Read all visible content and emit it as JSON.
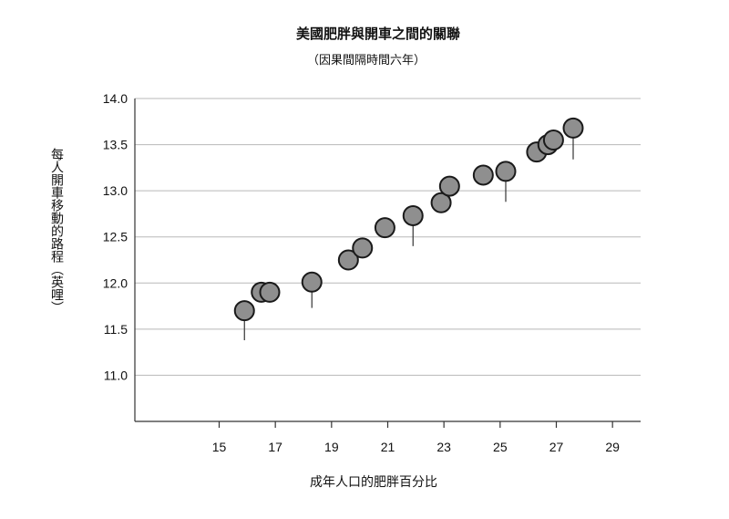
{
  "chart_data": {
    "type": "scatter",
    "title": "美國肥胖與開車之間的關聯",
    "subtitle": "（因果間隔時間六年）",
    "xlabel": "成年人口的肥胖百分比",
    "ylabel": "每人開車移動的路程（英哩）",
    "xlim": [
      12,
      30
    ],
    "ylim": [
      10.5,
      14.0
    ],
    "x_ticks": [
      15,
      17,
      19,
      21,
      23,
      25,
      27,
      29
    ],
    "x_tick_labels": [
      "15",
      "17",
      "19",
      "21",
      "23",
      "25",
      "27",
      "29"
    ],
    "y_ticks": [
      11.0,
      11.5,
      12.0,
      12.5,
      13.0,
      13.5,
      14.0
    ],
    "y_tick_labels": [
      "11.0",
      "11.5",
      "12.0",
      "12.5",
      "13.0",
      "13.5",
      "14.0"
    ],
    "grid": "horizontal",
    "points": [
      {
        "x": 15.9,
        "y": 11.7,
        "drop_to": 11.38
      },
      {
        "x": 16.5,
        "y": 11.9
      },
      {
        "x": 16.8,
        "y": 11.9
      },
      {
        "x": 18.3,
        "y": 12.01,
        "drop_to": 11.73
      },
      {
        "x": 19.6,
        "y": 12.25
      },
      {
        "x": 20.1,
        "y": 12.38
      },
      {
        "x": 20.9,
        "y": 12.6
      },
      {
        "x": 21.9,
        "y": 12.73,
        "drop_to": 12.4
      },
      {
        "x": 22.9,
        "y": 12.87
      },
      {
        "x": 23.2,
        "y": 13.05
      },
      {
        "x": 24.4,
        "y": 13.17
      },
      {
        "x": 25.2,
        "y": 13.21,
        "drop_to": 12.88
      },
      {
        "x": 26.3,
        "y": 13.42
      },
      {
        "x": 26.7,
        "y": 13.5
      },
      {
        "x": 26.9,
        "y": 13.55
      },
      {
        "x": 27.6,
        "y": 13.68,
        "drop_to": 13.34
      }
    ],
    "marker_color": "#8f8f8f",
    "marker_edge_color": "#1a1a1a"
  }
}
